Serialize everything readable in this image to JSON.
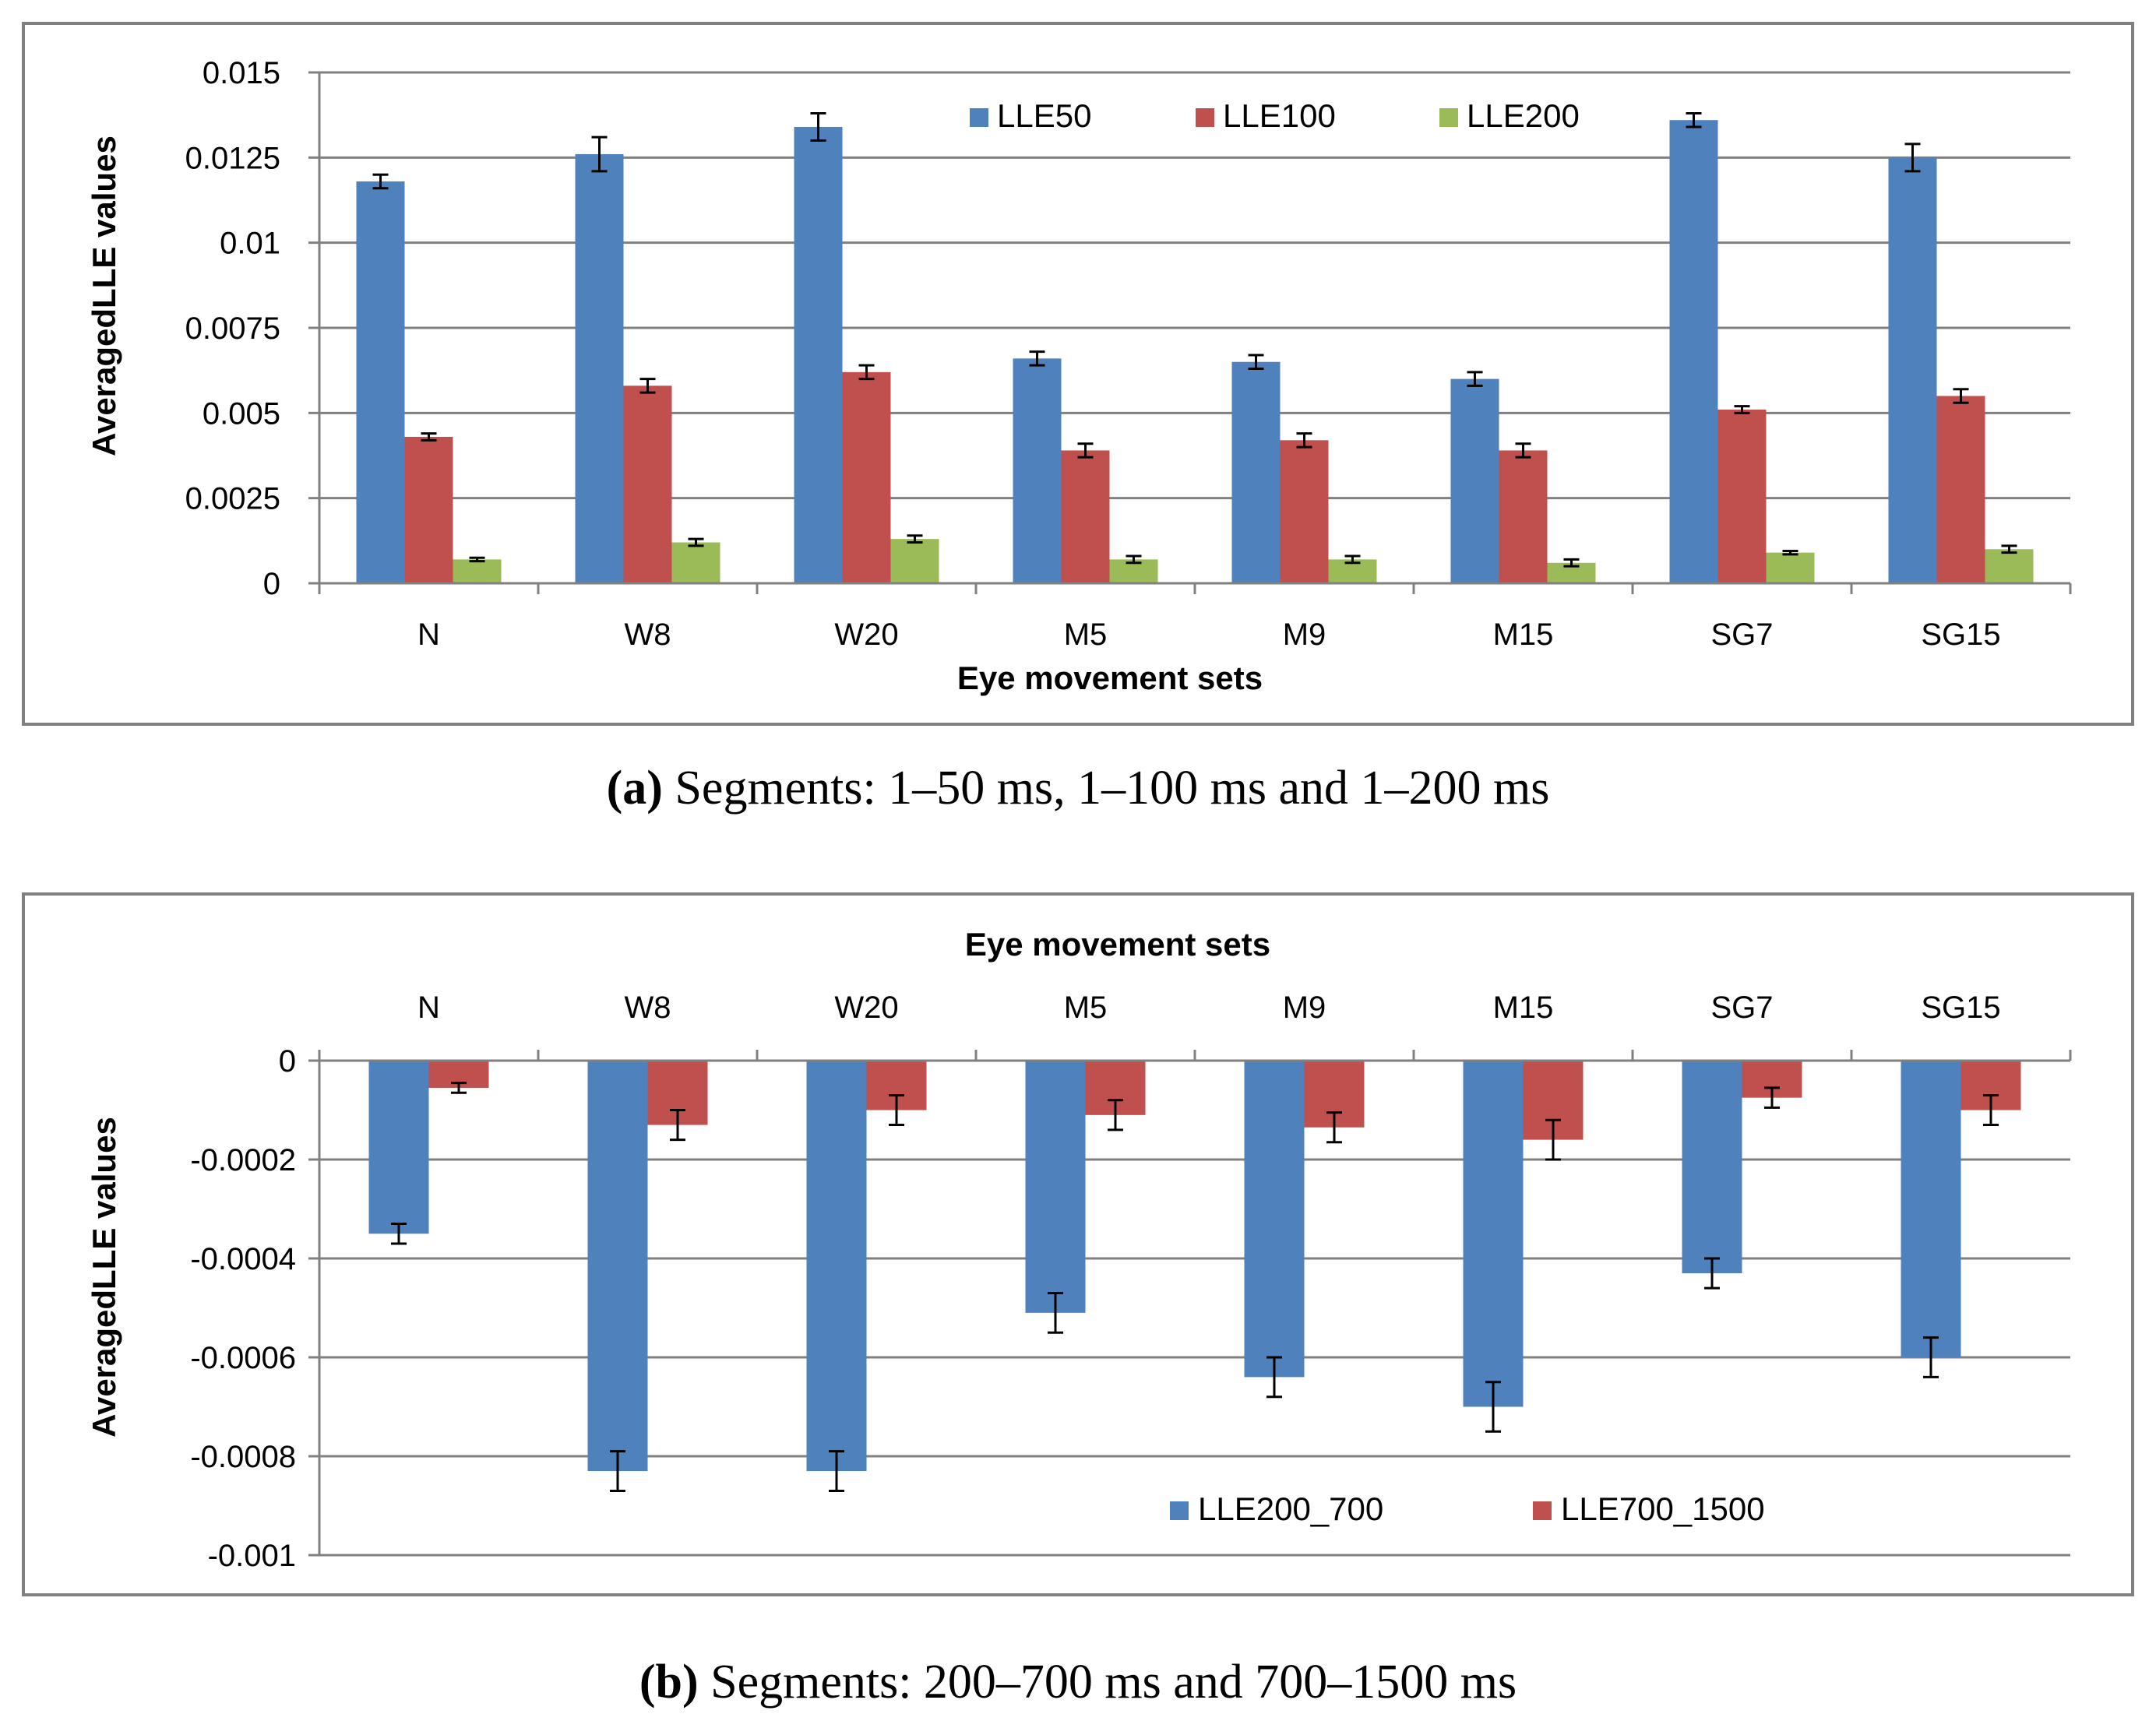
{
  "colors": {
    "series_blue": "#4F81BD",
    "series_red": "#C0504D",
    "series_green": "#9BBB59",
    "grid": "#808080",
    "frame": "#808080"
  },
  "chart_data": [
    {
      "id": "a",
      "type": "bar",
      "title": "",
      "xlabel": "Eye movement sets",
      "ylabel": "Averaged LLE values",
      "ylabel_display": "AveragedLLE values",
      "categories": [
        "N",
        "W8",
        "W20",
        "M5",
        "M9",
        "M15",
        "SG7",
        "SG15"
      ],
      "ylim": [
        0,
        0.015
      ],
      "yticks": [
        0,
        0.0025,
        0.005,
        0.0075,
        0.01,
        0.0125,
        0.015
      ],
      "ytick_labels": [
        "0",
        "0.0025",
        "0.005",
        "0.0075",
        "0.01",
        "0.0125",
        "0.015"
      ],
      "grid": true,
      "legend_position": "top-right",
      "series": [
        {
          "name": "LLE50",
          "values": [
            0.0118,
            0.0126,
            0.0134,
            0.0066,
            0.0065,
            0.006,
            0.0136,
            0.0125
          ],
          "errors": [
            0.0002,
            0.0005,
            0.0004,
            0.0002,
            0.0002,
            0.0002,
            0.0002,
            0.0004
          ]
        },
        {
          "name": "LLE100",
          "values": [
            0.0043,
            0.0058,
            0.0062,
            0.0039,
            0.0042,
            0.0039,
            0.0051,
            0.0055
          ],
          "errors": [
            0.0001,
            0.0002,
            0.0002,
            0.0002,
            0.0002,
            0.0002,
            0.0001,
            0.0002
          ]
        },
        {
          "name": "LLE200",
          "values": [
            0.0007,
            0.0012,
            0.0013,
            0.0007,
            0.0007,
            0.0006,
            0.0009,
            0.001
          ],
          "errors": [
            5e-05,
            0.0001,
            0.0001,
            0.0001,
            0.0001,
            0.0001,
            5e-05,
            0.0001
          ]
        }
      ],
      "caption_label": "(a)",
      "caption_text": " Segments: 1–50 ms, 1–100 ms and 1–200 ms"
    },
    {
      "id": "b",
      "type": "bar",
      "title": "",
      "xlabel": "Eye movement sets",
      "ylabel": "Averaged LLE values",
      "ylabel_display": "AveragedLLE values",
      "categories": [
        "N",
        "W8",
        "W20",
        "M5",
        "M9",
        "M15",
        "SG7",
        "SG15"
      ],
      "ylim": [
        -0.001,
        0
      ],
      "yticks": [
        0,
        -0.0002,
        -0.0004,
        -0.0006,
        -0.0008,
        -0.001
      ],
      "ytick_labels": [
        "0",
        "-0.0002",
        "-0.0004",
        "-0.0006",
        "-0.0008",
        "-0.001"
      ],
      "grid": true,
      "legend_position": "bottom-right",
      "series": [
        {
          "name": "LLE200_700",
          "values": [
            -0.00035,
            -0.00083,
            -0.00083,
            -0.00051,
            -0.00064,
            -0.0007,
            -0.00043,
            -0.0006
          ],
          "errors": [
            2e-05,
            4e-05,
            4e-05,
            4e-05,
            4e-05,
            5e-05,
            3e-05,
            4e-05
          ]
        },
        {
          "name": "LLE700_1500",
          "values": [
            -5.5e-05,
            -0.00013,
            -0.0001,
            -0.00011,
            -0.000135,
            -0.00016,
            -7.5e-05,
            -0.0001
          ],
          "errors": [
            1e-05,
            3e-05,
            3e-05,
            3e-05,
            3e-05,
            4e-05,
            2e-05,
            3e-05
          ]
        }
      ],
      "caption_label": "(b)",
      "caption_text": " Segments: 200–700 ms and 700–1500 ms"
    }
  ]
}
